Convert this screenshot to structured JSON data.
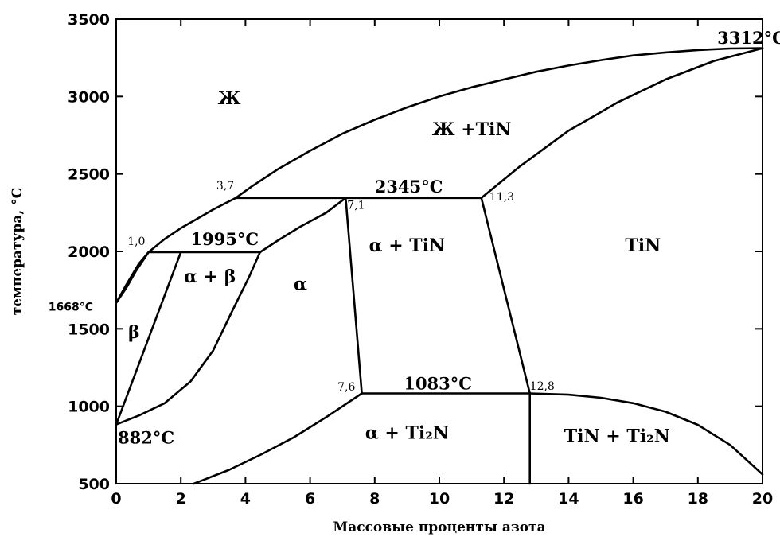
{
  "chart_data": {
    "type": "phase-diagram",
    "xlabel": "Массовые проценты азота",
    "ylabel": "температура, °C",
    "xlim": [
      0,
      20
    ],
    "ylim": [
      500,
      3500
    ],
    "x_ticks": [
      0,
      2,
      4,
      6,
      8,
      10,
      12,
      14,
      16,
      18,
      20
    ],
    "y_ticks": [
      500,
      1000,
      1500,
      2000,
      2500,
      3000,
      3500
    ],
    "regions": [
      {
        "label": "Ж",
        "x": 3.5,
        "y": 2950
      },
      {
        "label": "Ж +TiN",
        "x": 11.0,
        "y": 2750
      },
      {
        "label": "TiN",
        "x": 16.3,
        "y": 2000
      },
      {
        "label": "α + TiN",
        "x": 9.0,
        "y": 2000
      },
      {
        "label": "α + β",
        "x": 2.9,
        "y": 1800
      },
      {
        "label": "α",
        "x": 5.7,
        "y": 1750
      },
      {
        "label": "β",
        "x": 0.55,
        "y": 1440
      },
      {
        "label": "α + Ti₂N",
        "x": 9.0,
        "y": 790
      },
      {
        "label": "TiN + Ti₂N",
        "x": 15.5,
        "y": 770
      }
    ],
    "temperature_labels": [
      {
        "label": "3312°C",
        "x": 18.6,
        "y": 3340
      },
      {
        "label": "2345°C",
        "x": 8.0,
        "y": 2380
      },
      {
        "label": "1995°C",
        "x": 2.3,
        "y": 2040
      },
      {
        "label": "1083°C",
        "x": 8.9,
        "y": 1110
      },
      {
        "label": "882°C",
        "x": 0.05,
        "y": 760
      },
      {
        "label": "1668°C",
        "x": -2.1,
        "y": 1618
      }
    ],
    "composition_labels": [
      {
        "label": "3,7",
        "x": 3.1,
        "y": 2400
      },
      {
        "label": "7,1",
        "x": 7.15,
        "y": 2275
      },
      {
        "label": "11,3",
        "x": 11.55,
        "y": 2330
      },
      {
        "label": "1,0",
        "x": 0.35,
        "y": 2040
      },
      {
        "label": "7,6",
        "x": 6.85,
        "y": 1100
      },
      {
        "label": "12,8",
        "x": 12.8,
        "y": 1105
      }
    ],
    "curves": [
      {
        "name": "liquidus-main",
        "points": [
          [
            3.7,
            2345
          ],
          [
            4.2,
            2420
          ],
          [
            5,
            2530
          ],
          [
            6,
            2650
          ],
          [
            7,
            2760
          ],
          [
            8,
            2850
          ],
          [
            9,
            2930
          ],
          [
            10,
            3000
          ],
          [
            11,
            3060
          ],
          [
            12,
            3110
          ],
          [
            13,
            3160
          ],
          [
            14,
            3200
          ],
          [
            15,
            3235
          ],
          [
            16,
            3265
          ],
          [
            17,
            3285
          ],
          [
            18,
            3300
          ],
          [
            19,
            3310
          ],
          [
            20,
            3312
          ]
        ]
      },
      {
        "name": "liquidus-tin",
        "points": [
          [
            11.3,
            2345
          ],
          [
            12.5,
            2550
          ],
          [
            14,
            2780
          ],
          [
            15.5,
            2960
          ],
          [
            17,
            3110
          ],
          [
            18.5,
            3230
          ],
          [
            20,
            3312
          ]
        ]
      },
      {
        "name": "liquidus-left",
        "points": [
          [
            0,
            1668
          ],
          [
            0.3,
            1780
          ],
          [
            0.7,
            1920
          ],
          [
            1,
            1995
          ],
          [
            1.5,
            2080
          ],
          [
            2,
            2150
          ],
          [
            2.5,
            2210
          ],
          [
            3,
            2270
          ],
          [
            3.7,
            2345
          ]
        ]
      },
      {
        "name": "beta-solidus",
        "points": [
          [
            0,
            1668
          ],
          [
            0.3,
            1760
          ],
          [
            0.6,
            1870
          ],
          [
            1,
            1995
          ]
        ]
      },
      {
        "name": "alpha-liquid-boundary",
        "points": [
          [
            4.45,
            1995
          ],
          [
            5,
            2070
          ],
          [
            5.7,
            2160
          ],
          [
            6.5,
            2250
          ],
          [
            7.1,
            2345
          ]
        ]
      },
      {
        "name": "alpha-beta-right",
        "points": [
          [
            0,
            882
          ],
          [
            0.7,
            940
          ],
          [
            1.5,
            1020
          ],
          [
            2.3,
            1160
          ],
          [
            3,
            1360
          ],
          [
            3.6,
            1620
          ],
          [
            4.1,
            1830
          ],
          [
            4.45,
            1995
          ]
        ]
      },
      {
        "name": "beta-alpha-left",
        "points": [
          [
            0,
            882
          ],
          [
            2,
            1995
          ]
        ]
      },
      {
        "name": "alpha-tin-left",
        "points": [
          [
            7.1,
            2345
          ],
          [
            7.6,
            1083
          ]
        ]
      },
      {
        "name": "alpha-tin-right",
        "points": [
          [
            11.3,
            2345
          ],
          [
            12.8,
            1083
          ]
        ]
      },
      {
        "name": "alpha-ti2n-boundary",
        "points": [
          [
            2.4,
            500
          ],
          [
            3.5,
            590
          ],
          [
            4.5,
            690
          ],
          [
            5.5,
            800
          ],
          [
            6.5,
            930
          ],
          [
            7.6,
            1083
          ]
        ]
      },
      {
        "name": "tin-ti2n-boundary",
        "points": [
          [
            12.8,
            1083
          ],
          [
            12.8,
            500
          ]
        ]
      },
      {
        "name": "tin-right-solvus",
        "points": [
          [
            12.8,
            1083
          ],
          [
            14,
            1075
          ],
          [
            15,
            1055
          ],
          [
            16,
            1020
          ],
          [
            17,
            965
          ],
          [
            18,
            880
          ],
          [
            19,
            750
          ],
          [
            20,
            560
          ]
        ]
      },
      {
        "name": "eutectic-2345",
        "points": [
          [
            3.7,
            2345
          ],
          [
            11.3,
            2345
          ]
        ]
      },
      {
        "name": "peritectic-1995",
        "points": [
          [
            1,
            1995
          ],
          [
            4.45,
            1995
          ]
        ]
      },
      {
        "name": "isotherm-1083",
        "points": [
          [
            7.6,
            1083
          ],
          [
            12.8,
            1083
          ]
        ]
      }
    ]
  }
}
